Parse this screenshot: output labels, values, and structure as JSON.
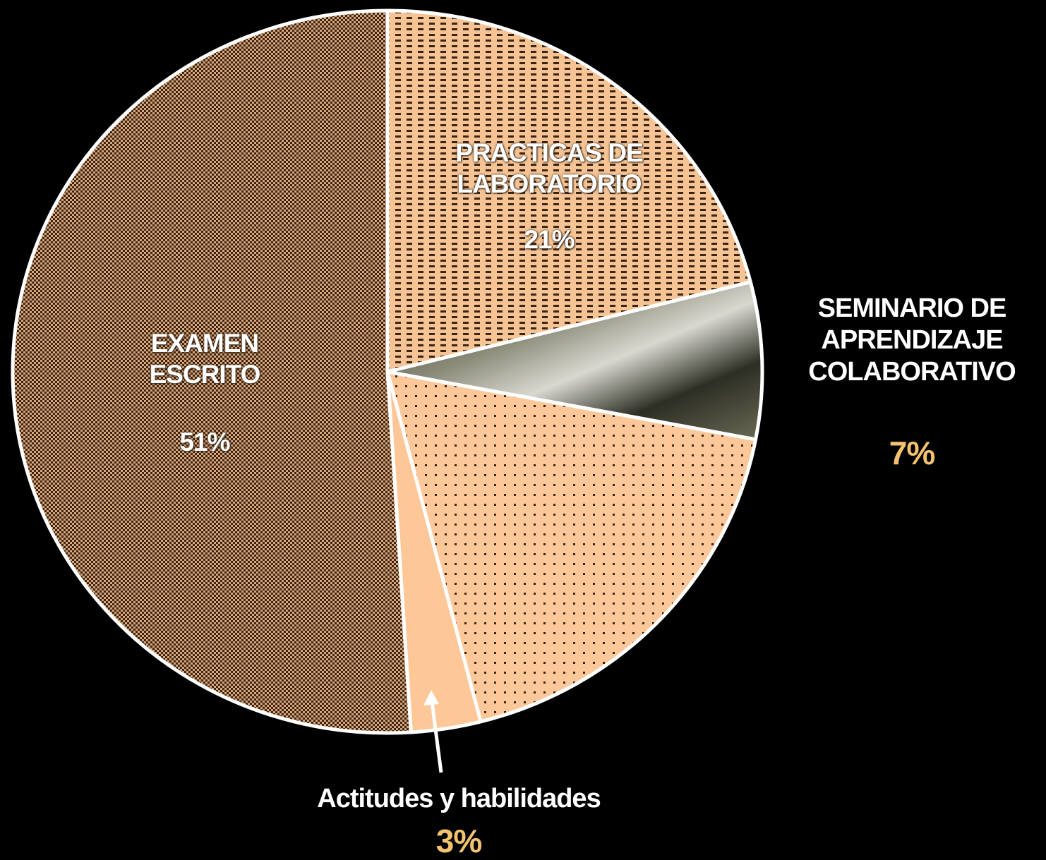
{
  "chart_data": {
    "type": "pie",
    "categories": [
      "PRACTICAS DE LABORATORIO",
      "SEMINARIO DE APRENDIZAJE COLABORATIVO",
      null,
      "Actitudes y habilidades",
      "EXAMEN ESCRITO"
    ],
    "values": [
      21,
      7,
      18,
      3,
      51
    ],
    "value_labels": [
      "21%",
      "7%",
      null,
      "3%",
      "51%"
    ],
    "colors": [
      "#f6c494",
      "#5a5440",
      "#fcc89a",
      "#fdc797",
      "#d9a779"
    ]
  }
}
